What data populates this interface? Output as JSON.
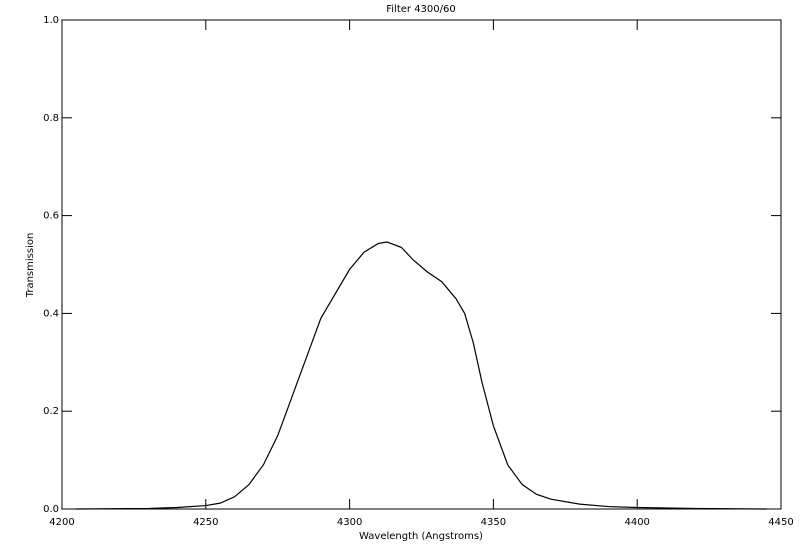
{
  "chart_data": {
    "type": "line",
    "title": "Filter 4300/60",
    "x_label": "Wavelength (Angstroms)",
    "y_label": "Transmission",
    "x": [
      4205,
      4230,
      4240,
      4250,
      4255,
      4260,
      4265,
      4270,
      4275,
      4280,
      4285,
      4290,
      4295,
      4300,
      4305,
      4310,
      4313,
      4318,
      4322,
      4327,
      4332,
      4337,
      4340,
      4343,
      4346,
      4350,
      4355,
      4360,
      4365,
      4370,
      4380,
      4390,
      4400,
      4420,
      4445
    ],
    "series": [
      {
        "name": "Transmission",
        "color": "#000000",
        "values": [
          0,
          0.001,
          0.003,
          0.007,
          0.012,
          0.025,
          0.05,
          0.09,
          0.15,
          0.23,
          0.31,
          0.39,
          0.44,
          0.49,
          0.525,
          0.543,
          0.546,
          0.535,
          0.51,
          0.485,
          0.465,
          0.43,
          0.4,
          0.34,
          0.26,
          0.17,
          0.09,
          0.05,
          0.03,
          0.02,
          0.01,
          0.005,
          0.003,
          0.001,
          0
        ]
      }
    ],
    "xlim": [
      4200,
      4450
    ],
    "xticks": [
      4200,
      4250,
      4300,
      4350,
      4400,
      4450
    ],
    "ylim": [
      0,
      1
    ],
    "yticks": [
      {
        "value": 0,
        "label": "0.0"
      },
      0.2,
      0.4,
      0.6,
      0.8,
      {
        "value": 1,
        "label": "1.0"
      }
    ],
    "grid": false
  }
}
